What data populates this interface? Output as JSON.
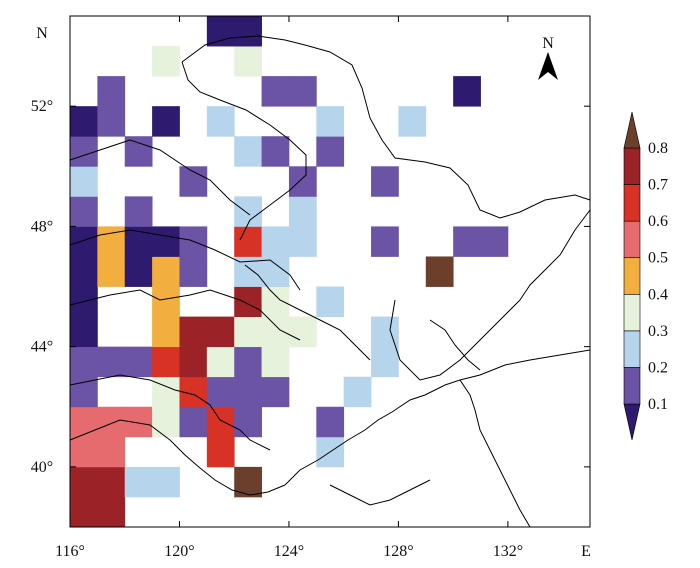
{
  "map": {
    "x_axis_unit": "E",
    "y_axis_unit": "N",
    "x_ticks": [
      "116°",
      "120°",
      "124°",
      "128°",
      "132°"
    ],
    "y_ticks": [
      "52°",
      "48°",
      "44°",
      "40°"
    ],
    "north_arrow_label": "N",
    "lon_range": [
      116,
      135
    ],
    "lat_range": [
      38,
      55
    ]
  },
  "legend": {
    "labels": [
      "0.1",
      "0.2",
      "0.3",
      "0.4",
      "0.5",
      "0.6",
      "0.7",
      "0.8"
    ],
    "colors": [
      "#2e1a6e",
      "#6b54a6",
      "#b6d4ec",
      "#e7f2dc",
      "#f2ae3e",
      "#e56b6f",
      "#d83227",
      "#9b2226",
      "#6b3f2b"
    ]
  },
  "grid": {
    "cell_deg": 1,
    "origin_lon": 116,
    "origin_lat": 38,
    "rows_from_south": [
      "AA----------------",
      "AACC--G-----------",
      "99---B---C--------",
      "999F2B2--2--------",
      "5--8B222--C-------",
      "555BA85F---C------",
      "1--DAA88F--C------",
      "1--D--A8-C--------",
      "1E1D2-66-----G----",
      "1E112-B66--2--33--",
      "5-3---7-7---------",
      "C---5---5--5------",
      "2-3---65-3--------",
      "12-4-6---7--7-----",
      "-3-----55-----4---",
      "---F--F-----------",
      "-----11-----------"
    ]
  }
}
